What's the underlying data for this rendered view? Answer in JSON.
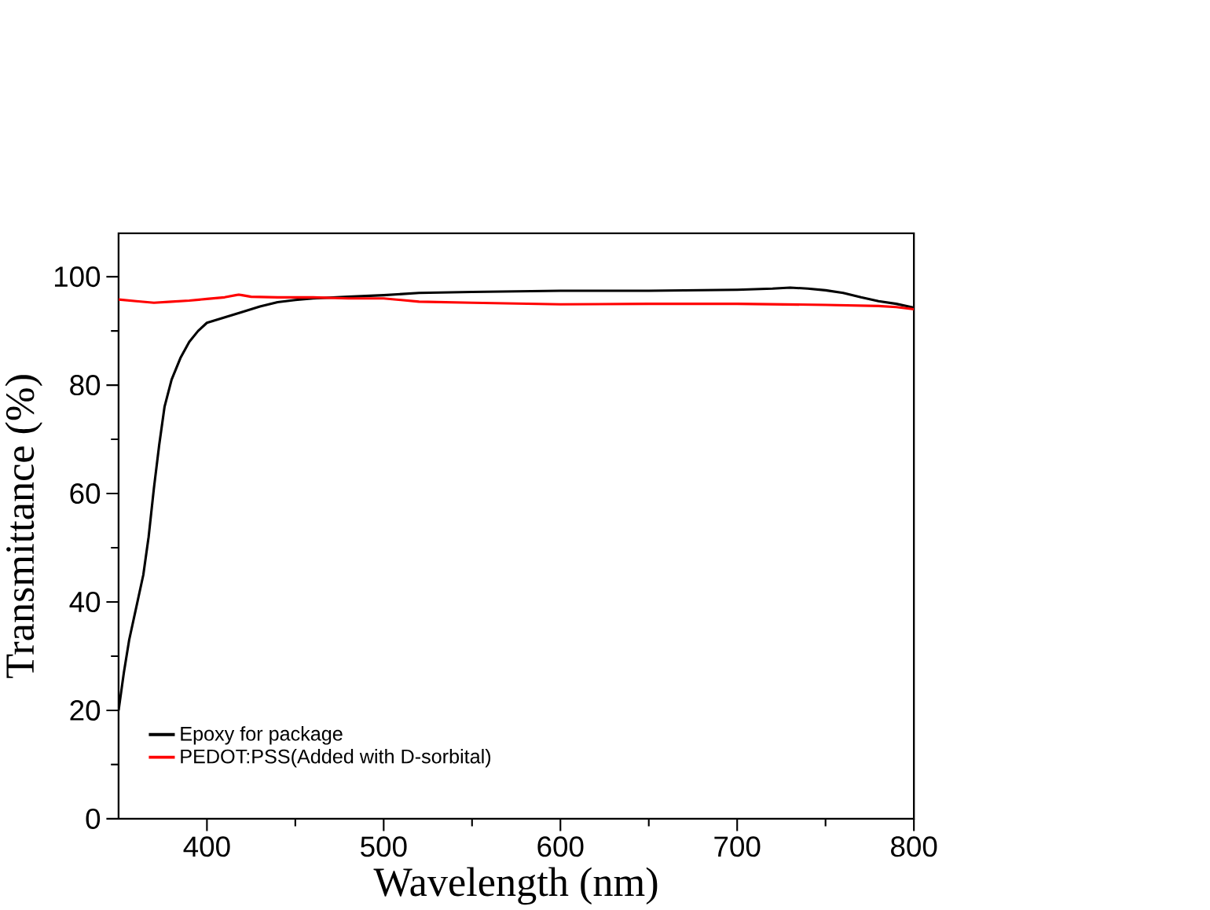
{
  "chart_data": {
    "type": "line",
    "xlabel": "Wavelength (nm)",
    "ylabel": "Transmittance (%)",
    "xlim": [
      350,
      800
    ],
    "ylim": [
      0,
      108
    ],
    "xticks": [
      400,
      500,
      600,
      700,
      800
    ],
    "yticks": [
      0,
      20,
      40,
      60,
      80,
      100
    ],
    "legend": "bottom left",
    "line_style": "solid",
    "marker": "none",
    "series": [
      {
        "name": "Epoxy for package",
        "color": "#000000",
        "x": [
          350,
          353,
          356,
          360,
          364,
          367,
          370,
          373,
          376,
          380,
          385,
          390,
          395,
          400,
          410,
          420,
          430,
          440,
          450,
          460,
          480,
          500,
          520,
          550,
          600,
          650,
          700,
          720,
          730,
          740,
          750,
          760,
          770,
          780,
          790,
          800
        ],
        "values": [
          20,
          27,
          33,
          39,
          45,
          52,
          61,
          69,
          76,
          81,
          85,
          88,
          90,
          91.5,
          92.5,
          93.5,
          94.5,
          95.3,
          95.7,
          96,
          96.3,
          96.6,
          97,
          97.2,
          97.4,
          97.4,
          97.6,
          97.8,
          98,
          97.8,
          97.5,
          97,
          96.2,
          95.5,
          95,
          94.3
        ]
      },
      {
        "name": "PEDOT:PSS(Added with D-sorbital)",
        "color": "#ff0000",
        "x": [
          350,
          360,
          370,
          380,
          390,
          400,
          410,
          418,
          425,
          440,
          460,
          480,
          500,
          520,
          550,
          600,
          650,
          700,
          750,
          780,
          790,
          800
        ],
        "values": [
          95.8,
          95.5,
          95.2,
          95.4,
          95.6,
          95.9,
          96.2,
          96.7,
          96.3,
          96.2,
          96.2,
          96,
          96,
          95.4,
          95.2,
          94.9,
          95,
          95,
          94.8,
          94.6,
          94.4,
          94
        ]
      }
    ]
  }
}
